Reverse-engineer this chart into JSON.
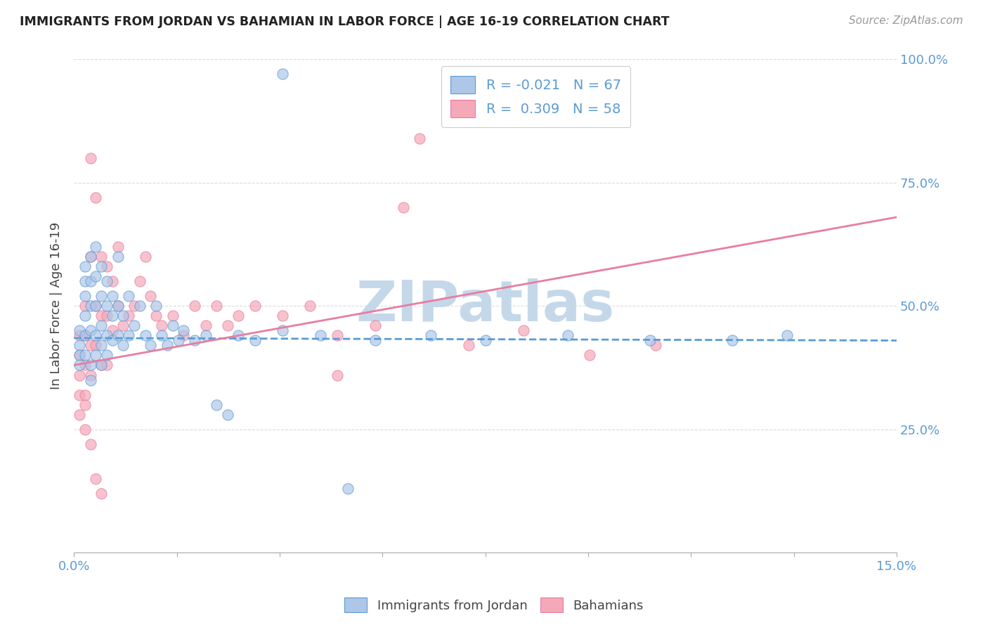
{
  "title": "IMMIGRANTS FROM JORDAN VS BAHAMIAN IN LABOR FORCE | AGE 16-19 CORRELATION CHART",
  "source": "Source: ZipAtlas.com",
  "ylabel": "In Labor Force | Age 16-19",
  "xlim": [
    0.0,
    0.15
  ],
  "ylim": [
    0.0,
    1.0
  ],
  "xtick_positions": [
    0.0,
    0.01875,
    0.0375,
    0.05625,
    0.075,
    0.09375,
    0.1125,
    0.13125,
    0.15
  ],
  "xtick_labels": [
    "0.0%",
    "",
    "",
    "",
    "",
    "",
    "",
    "",
    "15.0%"
  ],
  "ytick_positions": [
    0.0,
    0.25,
    0.5,
    0.75,
    1.0
  ],
  "ytick_labels_right": [
    "",
    "25.0%",
    "50.0%",
    "75.0%",
    "100.0%"
  ],
  "color_jordan": "#aec6e8",
  "color_bahamian": "#f4a8b8",
  "edge_jordan": "#5b9bd5",
  "edge_bahamian": "#e87da0",
  "trendline_jordan_color": "#5b9bd5",
  "trendline_bahamian_color": "#e87da0",
  "watermark": "ZIPatlas",
  "watermark_color": "#c5d8ea",
  "grid_color": "#d8d8d8",
  "jordan_x": [
    0.001,
    0.001,
    0.001,
    0.001,
    0.002,
    0.002,
    0.002,
    0.002,
    0.002,
    0.002,
    0.003,
    0.003,
    0.003,
    0.003,
    0.003,
    0.003,
    0.004,
    0.004,
    0.004,
    0.004,
    0.004,
    0.005,
    0.005,
    0.005,
    0.005,
    0.005,
    0.006,
    0.006,
    0.006,
    0.006,
    0.007,
    0.007,
    0.007,
    0.008,
    0.008,
    0.008,
    0.009,
    0.009,
    0.01,
    0.01,
    0.011,
    0.012,
    0.013,
    0.014,
    0.015,
    0.016,
    0.017,
    0.018,
    0.019,
    0.02,
    0.022,
    0.024,
    0.026,
    0.028,
    0.03,
    0.033,
    0.038,
    0.045,
    0.055,
    0.065,
    0.075,
    0.09,
    0.105,
    0.12,
    0.13,
    0.038,
    0.05
  ],
  "jordan_y": [
    0.42,
    0.4,
    0.45,
    0.38,
    0.58,
    0.55,
    0.52,
    0.48,
    0.44,
    0.4,
    0.6,
    0.55,
    0.5,
    0.45,
    0.38,
    0.35,
    0.62,
    0.56,
    0.5,
    0.44,
    0.4,
    0.58,
    0.52,
    0.46,
    0.42,
    0.38,
    0.55,
    0.5,
    0.44,
    0.4,
    0.52,
    0.48,
    0.43,
    0.6,
    0.5,
    0.44,
    0.48,
    0.42,
    0.52,
    0.44,
    0.46,
    0.5,
    0.44,
    0.42,
    0.5,
    0.44,
    0.42,
    0.46,
    0.43,
    0.45,
    0.43,
    0.44,
    0.3,
    0.28,
    0.44,
    0.43,
    0.45,
    0.44,
    0.43,
    0.44,
    0.43,
    0.44,
    0.43,
    0.43,
    0.44,
    0.97,
    0.13
  ],
  "bahamian_x": [
    0.001,
    0.001,
    0.001,
    0.001,
    0.002,
    0.002,
    0.002,
    0.002,
    0.003,
    0.003,
    0.003,
    0.003,
    0.004,
    0.004,
    0.004,
    0.005,
    0.005,
    0.005,
    0.006,
    0.006,
    0.006,
    0.007,
    0.007,
    0.008,
    0.008,
    0.009,
    0.01,
    0.011,
    0.012,
    0.013,
    0.014,
    0.015,
    0.016,
    0.018,
    0.02,
    0.022,
    0.024,
    0.026,
    0.028,
    0.03,
    0.033,
    0.038,
    0.043,
    0.048,
    0.055,
    0.063,
    0.072,
    0.082,
    0.094,
    0.106,
    0.048,
    0.06,
    0.001,
    0.002,
    0.002,
    0.003,
    0.004,
    0.005
  ],
  "bahamian_y": [
    0.44,
    0.4,
    0.36,
    0.32,
    0.5,
    0.44,
    0.38,
    0.32,
    0.8,
    0.6,
    0.42,
    0.36,
    0.72,
    0.5,
    0.42,
    0.6,
    0.48,
    0.38,
    0.58,
    0.48,
    0.38,
    0.55,
    0.45,
    0.62,
    0.5,
    0.46,
    0.48,
    0.5,
    0.55,
    0.6,
    0.52,
    0.48,
    0.46,
    0.48,
    0.44,
    0.5,
    0.46,
    0.5,
    0.46,
    0.48,
    0.5,
    0.48,
    0.5,
    0.44,
    0.46,
    0.84,
    0.42,
    0.45,
    0.4,
    0.42,
    0.36,
    0.7,
    0.28,
    0.3,
    0.25,
    0.22,
    0.15,
    0.12
  ],
  "trendline_bahamian_x0": 0.0,
  "trendline_bahamian_y0": 0.38,
  "trendline_bahamian_x1": 0.15,
  "trendline_bahamian_y1": 0.68,
  "trendline_jordan_x0": 0.0,
  "trendline_jordan_y0": 0.435,
  "trendline_jordan_x1": 0.15,
  "trendline_jordan_y1": 0.43
}
